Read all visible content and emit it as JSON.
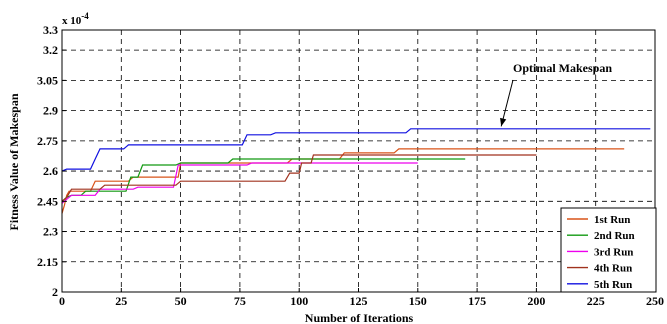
{
  "chart_data": {
    "type": "line",
    "xlabel": "Number of Iterations",
    "ylabel": "Fitness Value of Makespan",
    "xlim": [
      0,
      250
    ],
    "ylim": [
      2,
      3.3
    ],
    "y_exponent": "x 10",
    "y_exponent_power": "-4",
    "grid": true,
    "grid_style": "dashed",
    "legend_position": "bottom-right",
    "xticks": [
      "0",
      "25",
      "50",
      "75",
      "100",
      "125",
      "150",
      "175",
      "200",
      "225",
      "250"
    ],
    "yticks": [
      "2",
      "2.15",
      "2.3",
      "2.45",
      "2.6",
      "2.75",
      "2.9",
      "3.05",
      "3.2",
      "3.3"
    ],
    "annotation": {
      "text": "Optimal Makespan",
      "point": [
        186,
        2.807
      ]
    },
    "series": [
      {
        "name": "1st Run",
        "color": "#d95319",
        "x": [
          0,
          1,
          2,
          3,
          12,
          14,
          28,
          30,
          49,
          50,
          95,
          97,
          117,
          119,
          140,
          142,
          237
        ],
        "y": [
          2.39,
          2.43,
          2.48,
          2.5,
          2.5,
          2.55,
          2.55,
          2.57,
          2.57,
          2.64,
          2.64,
          2.66,
          2.66,
          2.69,
          2.69,
          2.71,
          2.71
        ]
      },
      {
        "name": "2nd Run",
        "color": "#119911",
        "x": [
          0,
          2,
          4,
          8,
          10,
          27,
          29,
          32,
          34,
          48,
          50,
          70,
          72,
          170
        ],
        "y": [
          2.45,
          2.47,
          2.48,
          2.48,
          2.5,
          2.5,
          2.57,
          2.57,
          2.63,
          2.63,
          2.64,
          2.64,
          2.66,
          2.66
        ]
      },
      {
        "name": "3rd Run",
        "color": "#ee00ee",
        "x": [
          0,
          2,
          4,
          14,
          16,
          30,
          32,
          47,
          49,
          78,
          80,
          150
        ],
        "y": [
          2.44,
          2.46,
          2.48,
          2.48,
          2.51,
          2.51,
          2.52,
          2.52,
          2.63,
          2.63,
          2.64,
          2.64
        ]
      },
      {
        "name": "4th Run",
        "color": "#a0321e",
        "x": [
          0,
          2,
          4,
          16,
          18,
          48,
          50,
          94,
          96,
          100,
          101,
          105,
          106,
          200
        ],
        "y": [
          2.45,
          2.47,
          2.51,
          2.51,
          2.53,
          2.53,
          2.55,
          2.55,
          2.59,
          2.59,
          2.64,
          2.64,
          2.68,
          2.68
        ]
      },
      {
        "name": "5th Run",
        "color": "#1010e0",
        "x": [
          0,
          2,
          12,
          14,
          16,
          26,
          28,
          76,
          78,
          88,
          90,
          145,
          147,
          248
        ],
        "y": [
          2.6,
          2.61,
          2.61,
          2.66,
          2.71,
          2.71,
          2.73,
          2.73,
          2.78,
          2.78,
          2.79,
          2.79,
          2.81,
          2.81
        ]
      }
    ]
  }
}
